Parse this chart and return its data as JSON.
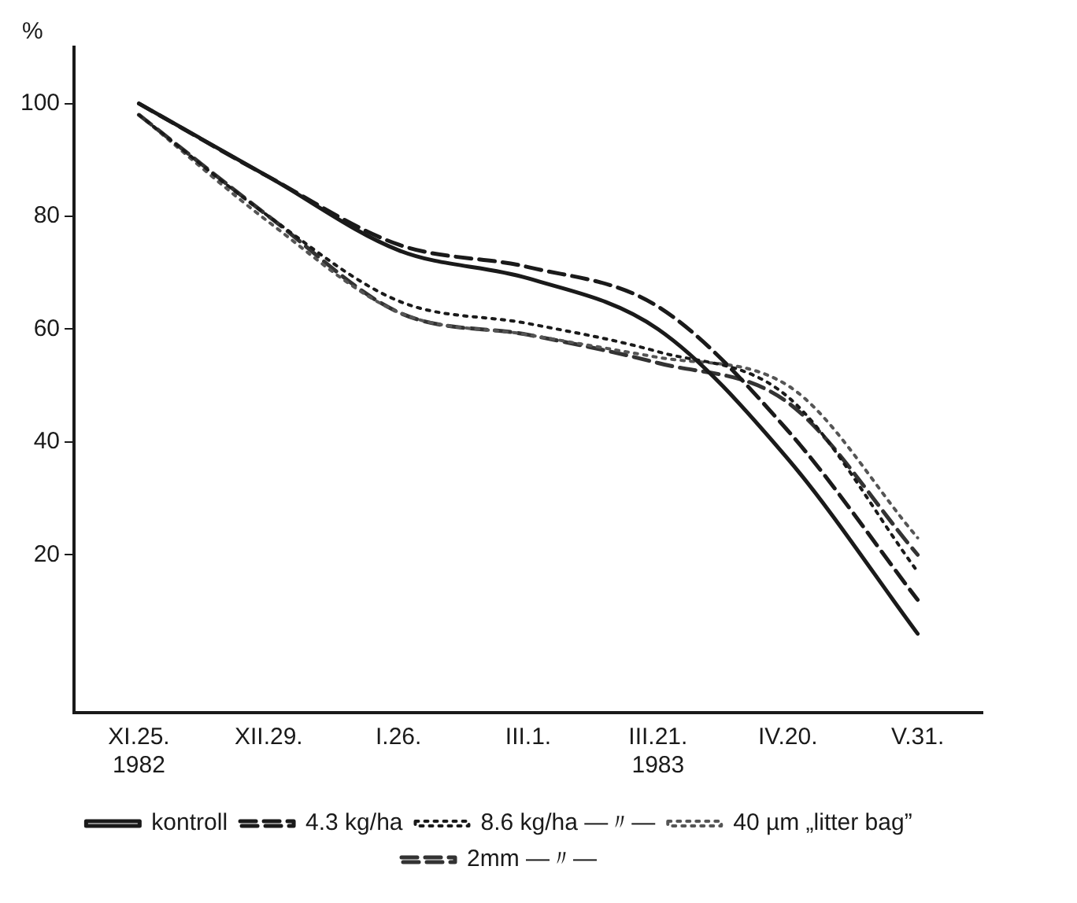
{
  "chart_data": {
    "type": "line",
    "ylabel": "%",
    "categories": [
      "XI.25.\n1982",
      "XII.29.",
      "I.26.",
      "III.1.",
      "III.21.\n1983",
      "IV.20.",
      "V.31."
    ],
    "ylim": [
      -8,
      110
    ],
    "yticks": [
      20,
      40,
      60,
      80,
      100
    ],
    "grid": false,
    "legend": "bottom",
    "marker": "none",
    "series": [
      {
        "name": "kontroll",
        "color": "#1a1a1a",
        "line_style": "solid",
        "values": [
          100,
          87,
          74,
          69,
          60,
          37,
          6
        ]
      },
      {
        "name": "4.3 kg/ha",
        "color": "#1a1a1a",
        "line_style": "dashed",
        "values": [
          100,
          87,
          75,
          71,
          64,
          42,
          12
        ]
      },
      {
        "name": "8.6 kg/ha —〃—",
        "color": "#1a1a1a",
        "line_style": "dotted",
        "values": [
          98,
          80,
          65,
          61,
          56,
          48,
          17
        ]
      },
      {
        "name": "40 µm „litter bag”",
        "color": "#555555",
        "line_style": "dotted",
        "values": [
          98,
          79,
          63,
          59,
          55,
          50,
          23
        ]
      },
      {
        "name": "2mm —〃—",
        "color": "#333333",
        "line_style": "dashed",
        "values": [
          98,
          80,
          63,
          59,
          54,
          47,
          20
        ]
      }
    ]
  }
}
